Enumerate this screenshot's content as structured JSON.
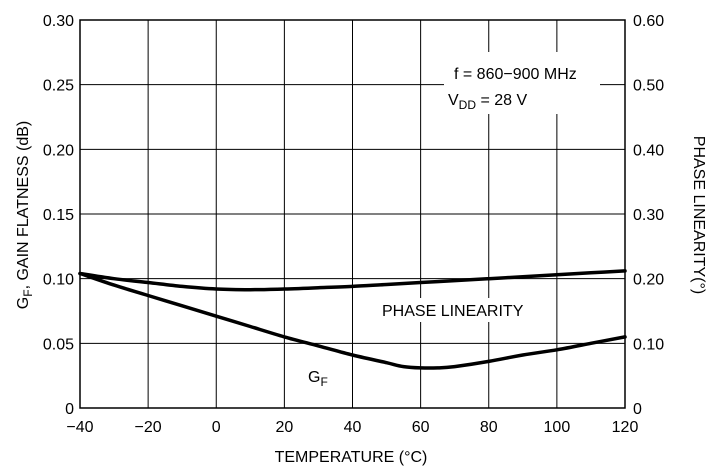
{
  "chart_data": {
    "type": "line",
    "xlabel": "TEMPERATURE (°C)",
    "ylabel_left": {
      "main": "G",
      "sub": "F",
      "rest": ", GAIN FLATNESS (dB)"
    },
    "ylabel_right": "PHASE LINEARITY(°)",
    "xlim": [
      -40,
      120
    ],
    "ylim_left": [
      0,
      0.3
    ],
    "ylim_right": [
      0,
      0.6
    ],
    "x_ticks": [
      "−40",
      "−20",
      "0",
      "20",
      "40",
      "60",
      "80",
      "100",
      "120"
    ],
    "y_left_ticks": [
      "0",
      "0.05",
      "0.10",
      "0.15",
      "0.20",
      "0.25",
      "0.30"
    ],
    "y_right_ticks": [
      "0",
      "0.10",
      "0.20",
      "0.30",
      "0.40",
      "0.50",
      "0.60"
    ],
    "grid": true,
    "annotations": {
      "freq": "f = 860−900 MHz",
      "vdd_main": "V",
      "vdd_sub": "DD",
      "vdd_rest": " = 28 V"
    },
    "series": [
      {
        "name": "PHASE LINEARITY",
        "axis": "right",
        "x": [
          -40,
          -30,
          -20,
          -10,
          0,
          10,
          20,
          30,
          40,
          50,
          60,
          70,
          80,
          90,
          100,
          110,
          120
        ],
        "y": [
          0.208,
          0.2,
          0.194,
          0.188,
          0.184,
          0.183,
          0.184,
          0.186,
          0.188,
          0.191,
          0.194,
          0.197,
          0.2,
          0.203,
          0.206,
          0.209,
          0.212
        ]
      },
      {
        "name_main": "G",
        "name_sub": "F",
        "axis": "left",
        "x": [
          -40,
          -30,
          -20,
          -10,
          0,
          10,
          20,
          30,
          40,
          50,
          55,
          60,
          65,
          70,
          80,
          90,
          100,
          110,
          120
        ],
        "y": [
          0.104,
          0.095,
          0.087,
          0.079,
          0.071,
          0.063,
          0.055,
          0.048,
          0.041,
          0.035,
          0.032,
          0.031,
          0.031,
          0.032,
          0.036,
          0.041,
          0.045,
          0.05,
          0.055
        ]
      }
    ],
    "series_labels": {
      "phase": "PHASE LINEARITY",
      "gf_main": "G",
      "gf_sub": "F"
    },
    "colors": {
      "line": "#000000",
      "grid": "#000000",
      "background": "#ffffff"
    }
  }
}
